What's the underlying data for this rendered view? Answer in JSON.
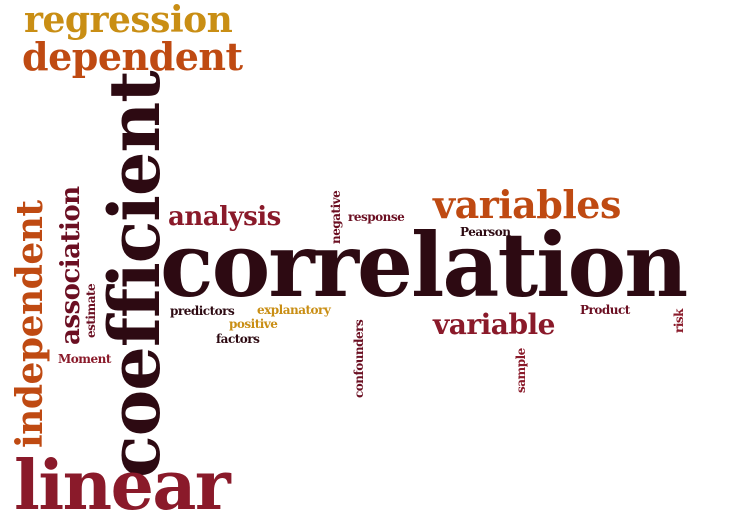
{
  "words": {
    "regression": "regression",
    "dependent": "dependent",
    "coefficient": "coefficient",
    "independent": "independent",
    "association": "association",
    "estimate": "estimate",
    "analysis": "analysis",
    "negative": "negative",
    "response": "response",
    "variables": "variables",
    "pearson": "Pearson",
    "correlation": "correlation",
    "predictors": "predictors",
    "explanatory": "explanatory",
    "positive": "positive",
    "factors": "factors",
    "confounders": "confounders",
    "variable": "variable",
    "product": "Product",
    "risk": "risk",
    "sample": "sample",
    "moment": "Moment",
    "linear": "linear"
  },
  "colors": {
    "dark": "#2d0a12",
    "maroon": "#8a1a2a",
    "rust": "#bf4a12",
    "gold": "#c98e14",
    "wine": "#6b0f22",
    "background": "#ffffff"
  }
}
